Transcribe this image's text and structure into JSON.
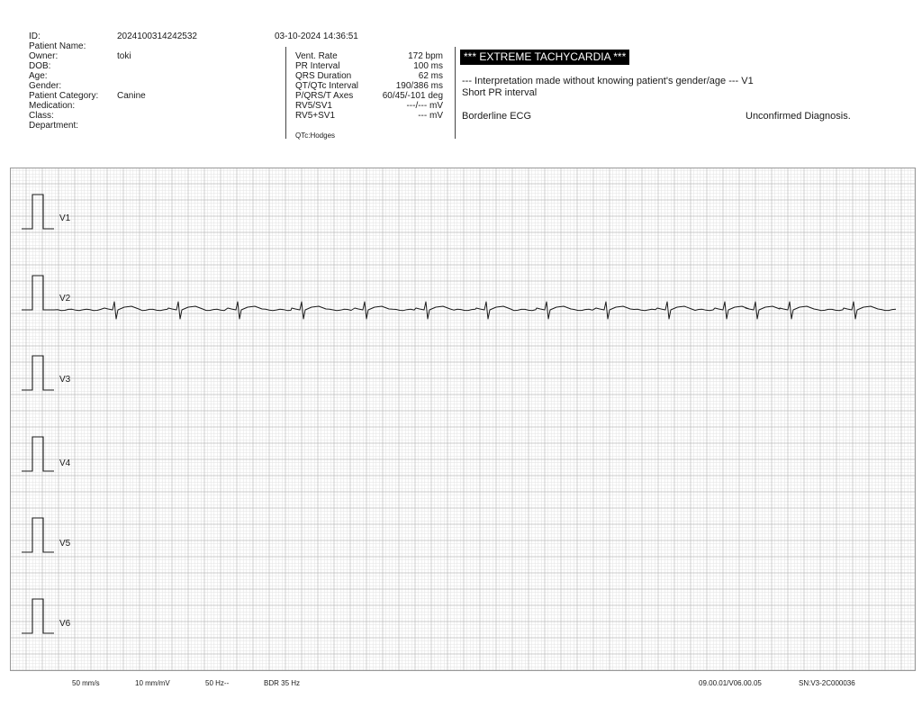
{
  "patient": {
    "labels": [
      "ID:",
      "Patient Name:",
      "Owner:",
      "DOB:",
      "Age:",
      "Gender:",
      "Patient Category:",
      "Medication:",
      "Class:",
      "Department:"
    ],
    "values": [
      "2024100314242532",
      "",
      "toki",
      "",
      "",
      "",
      "Canine",
      "",
      "",
      ""
    ],
    "datetime": "03-10-2024 14:36:51"
  },
  "measurements": {
    "labels": [
      "Vent. Rate",
      "PR Interval",
      "QRS Duration",
      "QT/QTc Interval",
      "P/QRS/T Axes",
      "RV5/SV1",
      "RV5+SV1"
    ],
    "values": [
      "172 bpm",
      "100 ms",
      "62 ms",
      "190/386 ms",
      "60/45/-101 deg",
      "---/--- mV",
      "--- mV"
    ],
    "qtc_method": "QTc:Hodges"
  },
  "interpretation": {
    "banner": "*** EXTREME TACHYCARDIA ***",
    "line1": "--- Interpretation made without knowing patient's gender/age --- V1",
    "line2": "Short PR interval",
    "line3": "Borderline ECG",
    "status": "Unconfirmed Diagnosis."
  },
  "leads": [
    "V1",
    "V2",
    "V3",
    "V4",
    "V5",
    "V6"
  ],
  "footer": {
    "speed": "50 mm/s",
    "gain": "10 mm/mV",
    "notch": "50 Hz--",
    "filter": "BDR 35 Hz",
    "version": "09.00.01/V06.00.05",
    "serial": "SN:V3-2C000036"
  },
  "colors": {
    "grid_minor": "#e2e2e2",
    "grid_major": "#bcbcbc",
    "trace": "#1a1a1a"
  }
}
